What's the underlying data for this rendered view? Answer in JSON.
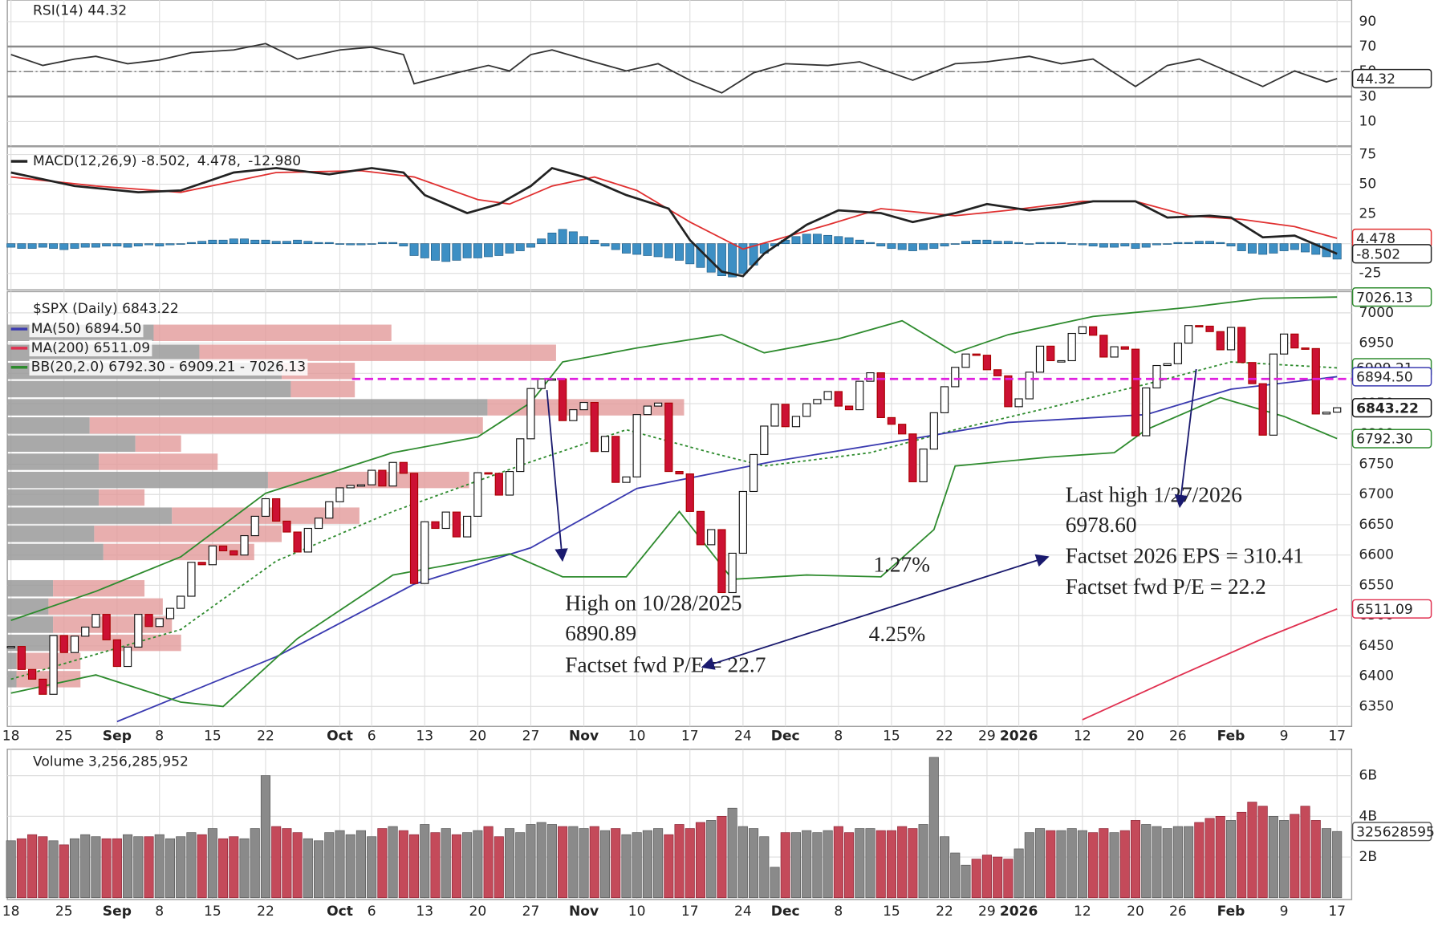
{
  "chart_data": [
    {
      "type": "line",
      "header": "RSI(14) 44.32",
      "color": "#333333",
      "x": [
        0,
        3,
        6,
        8,
        11,
        14,
        17,
        21,
        24,
        27,
        31,
        34,
        37,
        38,
        42,
        45,
        47,
        49,
        51,
        54,
        58,
        61,
        64,
        67,
        70,
        73,
        77,
        80,
        85,
        89,
        92,
        96,
        99,
        102,
        106,
        109,
        112,
        114,
        118,
        121,
        124,
        125
      ],
      "values": [
        63.6,
        54.9,
        60,
        62.2,
        56.3,
        59.3,
        65.1,
        67.3,
        72.4,
        60,
        67.3,
        69.5,
        63.6,
        40.2,
        49,
        54.9,
        50.5,
        63.6,
        67.3,
        60,
        50.5,
        56.3,
        43.1,
        32.9,
        49,
        56.3,
        54.9,
        57.8,
        43.1,
        56.3,
        57.8,
        62.2,
        56.3,
        60,
        38,
        54.9,
        60,
        52.7,
        38,
        50.5,
        41.7,
        44.32
      ],
      "ylim": [
        0,
        100
      ],
      "yticks": [
        90,
        70,
        50,
        30,
        10
      ],
      "levels": [
        70,
        30
      ],
      "midline": 50
    },
    {
      "type": "macd",
      "header": [
        "MACD(12,26,9) -8.502,",
        "4.478,",
        "-12.980"
      ],
      "series": [
        {
          "color": "#222222",
          "x": [
            0,
            6,
            12,
            16,
            21,
            25,
            30,
            34,
            37,
            39,
            43,
            46,
            49,
            51,
            54,
            58,
            62,
            64,
            67,
            69,
            71,
            75,
            78,
            82,
            85,
            89,
            92,
            96,
            99,
            102,
            106,
            109,
            113,
            115,
            118,
            121,
            125
          ],
          "values": [
            59.8,
            48.5,
            43.2,
            44.7,
            59.8,
            63.6,
            58.3,
            63.6,
            59.8,
            40.9,
            25.7,
            33.3,
            48.5,
            63.6,
            56.1,
            40.9,
            29.5,
            3,
            -23.5,
            -27.3,
            -8.4,
            15.9,
            28,
            25.7,
            18.2,
            25.7,
            33.3,
            28,
            31,
            35.6,
            35.6,
            22,
            23.5,
            22,
            5.3,
            6.8,
            -8.502
          ]
        },
        {
          "color": "#e03030",
          "x": [
            0,
            8,
            16,
            25,
            33,
            38,
            44,
            47,
            51,
            55,
            59,
            64,
            69,
            72,
            77,
            82,
            89,
            94,
            101,
            106,
            111,
            116,
            121,
            125
          ],
          "values": [
            56.1,
            48.5,
            43.2,
            59.8,
            61.4,
            56.1,
            37.1,
            33.3,
            48.5,
            56.1,
            44.7,
            18.2,
            -4.6,
            3,
            15.9,
            29.5,
            23.5,
            28,
            35.6,
            35.6,
            23.5,
            20.4,
            14.4,
            4.478
          ]
        },
        {
          "color": "#3d8fc4",
          "values": [
            -3,
            -4,
            -4,
            -3,
            -4,
            -5,
            -4,
            -3,
            -3,
            -2,
            -2,
            -3,
            -2,
            -1,
            -2,
            -1,
            0,
            1,
            2,
            3,
            3,
            4,
            4,
            3,
            3,
            2,
            2,
            3,
            2,
            1,
            1,
            0,
            -1,
            -1,
            0,
            1,
            1,
            -2,
            -10,
            -12,
            -14,
            -15,
            -14,
            -12,
            -12,
            -11,
            -10,
            -8,
            -6,
            -3,
            4,
            9,
            12,
            10,
            6,
            3,
            -2,
            -5,
            -8,
            -9,
            -10,
            -11,
            -12,
            -14,
            -17,
            -20,
            -24,
            -27,
            -28,
            -25,
            -18,
            -8,
            -2,
            3,
            6,
            8,
            8,
            7,
            6,
            5,
            3,
            1,
            -2,
            -4,
            -5,
            -6,
            -5,
            -4,
            -2,
            0,
            2,
            3,
            3,
            2,
            2,
            1,
            0,
            1,
            1,
            1,
            0,
            -1,
            -2,
            -3,
            -3,
            -2,
            -4,
            -3,
            -1,
            0,
            1,
            1,
            2,
            2,
            1,
            -2,
            -6,
            -8,
            -9,
            -8,
            -6,
            -5,
            -7,
            -9,
            -11,
            -12.98
          ]
        }
      ],
      "ylim": [
        -35,
        80
      ],
      "yticks": [
        75,
        50,
        25,
        0,
        -25
      ]
    },
    {
      "type": "candlestick",
      "header": "$SPX (Daily) 6843.22",
      "categories": [
        "18",
        null,
        null,
        null,
        null,
        "25",
        null,
        null,
        null,
        null,
        "Sep",
        null,
        null,
        null,
        "8",
        null,
        null,
        null,
        null,
        "15",
        null,
        null,
        null,
        null,
        "22",
        null,
        null,
        null,
        null,
        null,
        null,
        "Oct",
        null,
        null,
        "6",
        null,
        null,
        null,
        null,
        "13",
        null,
        null,
        null,
        null,
        "20",
        null,
        null,
        null,
        null,
        "27",
        null,
        null,
        null,
        null,
        "Nov",
        null,
        null,
        null,
        null,
        "10",
        null,
        null,
        null,
        null,
        "17",
        null,
        null,
        null,
        null,
        "24",
        null,
        null,
        null,
        "Dec",
        null,
        null,
        null,
        null,
        "8",
        null,
        null,
        null,
        null,
        "15",
        null,
        null,
        null,
        null,
        "22",
        null,
        null,
        null,
        "29",
        null,
        null,
        "2026",
        null,
        null,
        null,
        null,
        null,
        "12",
        null,
        null,
        null,
        null,
        "20",
        null,
        null,
        null,
        "26",
        null,
        null,
        null,
        null,
        "Feb",
        null,
        null,
        null,
        null,
        "9",
        null,
        null,
        null,
        null,
        "17"
      ],
      "close": [
        6449,
        6411,
        6395,
        6370,
        6467,
        6439,
        6466,
        6481,
        6502,
        6460,
        6416,
        6448,
        6502,
        6482,
        6495,
        6512,
        6532,
        6588,
        6584,
        6615,
        6607,
        6600,
        6632,
        6664,
        6693,
        6656,
        6638,
        6605,
        6644,
        6661,
        6688,
        6711,
        6715,
        6716,
        6740,
        6714,
        6753,
        6735,
        6553,
        6655,
        6644,
        6671,
        6630,
        6664,
        6736,
        6735,
        6699,
        6738,
        6792,
        6875,
        6891,
        6891,
        6822,
        6840,
        6852,
        6771,
        6796,
        6720,
        6729,
        6832,
        6846,
        6851,
        6738,
        6734,
        6672,
        6617,
        6642,
        6538,
        6603,
        6705,
        6766,
        6813,
        6849,
        6812,
        6829,
        6850,
        6857,
        6870,
        6846,
        6840,
        6887,
        6901,
        6827,
        6816,
        6800,
        6721,
        6775,
        6835,
        6878,
        6910,
        6932,
        6930,
        6906,
        6896,
        6845,
        6858,
        6902,
        6945,
        6921,
        6921,
        6966,
        6977,
        6963,
        6927,
        6944,
        6940,
        6797,
        6876,
        6913,
        6916,
        6950,
        6979,
        6978,
        6969,
        6939,
        6976,
        6918,
        6883,
        6798,
        6932,
        6965,
        6942,
        6941,
        6833,
        6836,
        6843.22
      ],
      "legend": [
        {
          "label": "MA(50) 6894.50",
          "color": "#3a3ab0"
        },
        {
          "label": "MA(200) 6511.09",
          "color": "#e03050"
        },
        {
          "label": "BB(20,2.0) 6792.30 - 6909.21 - 7026.13",
          "color": "#2e8b2e"
        }
      ],
      "overlays": [
        {
          "color": "#2e8b2e",
          "dash": true,
          "x": [
            0,
            16,
            25,
            36,
            49,
            58,
            66,
            71,
            81,
            89,
            98,
            107,
            115,
            125
          ],
          "values": [
            6395,
            6477,
            6590,
            6672,
            6754,
            6807,
            6769,
            6747,
            6769,
            6807,
            6844,
            6882,
            6919,
            6909.21
          ]
        },
        {
          "color": "#3a3ab0",
          "x": [
            10,
            25,
            38,
            49,
            59,
            72,
            85,
            94,
            107,
            115,
            125
          ],
          "values": [
            6325,
            6432,
            6552,
            6612,
            6710,
            6755,
            6792,
            6819,
            6832,
            6874,
            6894.5
          ],
          "value_labels": [
            null,
            null,
            null,
            null,
            null,
            null,
            null,
            null,
            null,
            null,
            "6894.50"
          ]
        },
        {
          "color": "#e03050",
          "x": [
            101,
            110,
            118,
            125
          ],
          "values": [
            6328,
            6400,
            6462,
            6511.09
          ]
        },
        {
          "color": "#2e8b2e",
          "x": [
            0,
            8,
            16,
            24,
            36,
            44,
            49,
            52,
            59,
            67,
            71,
            78,
            84,
            89,
            94,
            102,
            111,
            118,
            125
          ],
          "values": [
            6492,
            6540,
            6597,
            6702,
            6769,
            6795,
            6852,
            6919,
            6942,
            6964,
            6934,
            6957,
            6987,
            6934,
            6964,
            6994,
            7009,
            7024,
            7026.13
          ]
        },
        {
          "color": "#2e8b2e",
          "x": [
            0,
            8,
            16,
            20,
            27,
            36,
            47,
            52,
            58,
            63,
            68,
            75,
            82,
            87,
            89,
            98,
            104,
            107,
            114,
            120,
            125
          ],
          "values": [
            6372,
            6402,
            6357,
            6350,
            6462,
            6567,
            6602,
            6564,
            6564,
            6672,
            6560,
            6567,
            6564,
            6642,
            6747,
            6762,
            6769,
            6807,
            6860,
            6829,
            6792.3
          ],
          "value_labels": [
            null,
            null,
            null,
            null,
            null,
            null,
            null,
            null,
            null,
            null,
            null,
            null,
            null,
            null,
            null,
            null,
            null,
            null,
            null,
            null,
            "6792.30"
          ]
        }
      ],
      "volume_by_price": {
        "price": [
          6967,
          6934,
          6904,
          6874,
          6844,
          6814,
          6784,
          6754,
          6724,
          6695,
          6665,
          6635,
          6605,
          6545,
          6515,
          6485,
          6455,
          6425,
          6395
        ],
        "down": [
          160,
          210,
          300,
          310,
          525,
          90,
          140,
          100,
          285,
          100,
          180,
          95,
          105,
          50,
          45,
          50,
          55,
          10,
          10
        ],
        "up": [
          260,
          390,
          80,
          70,
          215,
          430,
          50,
          130,
          220,
          50,
          205,
          205,
          165,
          100,
          125,
          130,
          135,
          70,
          70
        ]
      },
      "reference_line": 6890.89,
      "annotations": [
        {
          "text": "High on 10/28/2025",
          "color": "#1a1a6e"
        },
        {
          "text": "6890.89",
          "color": "#1a1a6e"
        },
        {
          "text": "Factset fwd P/E = 22.7",
          "color": "#2a9a2a"
        },
        {
          "text": "Last high 1/27/2026",
          "color": "#1a1a6e"
        },
        {
          "text": "6978.60",
          "color": "#1a1a6e"
        },
        {
          "text": "Factset 2026 EPS = 310.41",
          "color": "#2a9a2a"
        },
        {
          "text": "Factset fwd P/E = 22.2",
          "color": "#2a9a2a"
        },
        {
          "text": "1.27%",
          "color": "#1a1a6e"
        },
        {
          "text": "4.25%",
          "color": "#2a9a2a"
        }
      ],
      "ylim": [
        6320,
        7035
      ],
      "yticks": [
        7000,
        6950,
        6900,
        6850,
        6800,
        6750,
        6700,
        6650,
        6600,
        6550,
        6500,
        6450,
        6400,
        6350
      ]
    },
    {
      "type": "volume",
      "header": "Volume 3,256,285,952",
      "up_color": "#8a8a8a",
      "down_color": "#c44a5a",
      "values": [
        2800000000.0,
        2900000000.0,
        3100000000.0,
        3000000000.0,
        2800000000.0,
        2600000000.0,
        2900000000.0,
        3100000000.0,
        3000000000.0,
        2900000000.0,
        2900000000.0,
        3100000000.0,
        3000000000.0,
        3000000000.0,
        3100000000.0,
        2900000000.0,
        3000000000.0,
        3200000000.0,
        3100000000.0,
        3400000000.0,
        2900000000.0,
        3000000000.0,
        2900000000.0,
        3400000000.0,
        6000000000.0,
        3500000000.0,
        3400000000.0,
        3200000000.0,
        2900000000.0,
        2800000000.0,
        3200000000.0,
        3300000000.0,
        3100000000.0,
        3300000000.0,
        3000000000.0,
        3400000000.0,
        3500000000.0,
        3300000000.0,
        3100000000.0,
        3600000000.0,
        3200000000.0,
        3400000000.0,
        3100000000.0,
        3200000000.0,
        3300000000.0,
        3500000000.0,
        3000000000.0,
        3400000000.0,
        3200000000.0,
        3600000000.0,
        3700000000.0,
        3600000000.0,
        3500000000.0,
        3500000000.0,
        3400000000.0,
        3500000000.0,
        3300000000.0,
        3400000000.0,
        3100000000.0,
        3200000000.0,
        3300000000.0,
        3400000000.0,
        3100000000.0,
        3600000000.0,
        3400000000.0,
        3700000000.0,
        3800000000.0,
        4000000000.0,
        4400000000.0,
        3500000000.0,
        3400000000.0,
        3000000000.0,
        1500000000.0,
        3200000000.0,
        3200000000.0,
        3300000000.0,
        3200000000.0,
        3300000000.0,
        3500000000.0,
        3200000000.0,
        3400000000.0,
        3400000000.0,
        3300000000.0,
        3300000000.0,
        3500000000.0,
        3400000000.0,
        3600000000.0,
        6900000000.0,
        3000000000.0,
        2200000000.0,
        1600000000.0,
        1900000000.0,
        2100000000.0,
        2000000000.0,
        1900000000.0,
        2400000000.0,
        3200000000.0,
        3400000000.0,
        3300000000.0,
        3300000000.0,
        3400000000.0,
        3300000000.0,
        3200000000.0,
        3400000000.0,
        3200000000.0,
        3300000000.0,
        3800000000.0,
        3600000000.0,
        3500000000.0,
        3400000000.0,
        3500000000.0,
        3500000000.0,
        3700000000.0,
        3900000000.0,
        4000000000.0,
        3800000000.0,
        4200000000.0,
        4700000000.0,
        4500000000.0,
        4000000000.0,
        3800000000.0,
        4100000000.0,
        4500000000.0,
        3800000000.0,
        3400000000.0,
        3256285952
      ],
      "ylim": [
        0,
        7300000000.0
      ],
      "yticks": [
        {
          "value": 2000000000,
          "label": "2B"
        },
        {
          "value": 4000000000,
          "label": "4B"
        },
        {
          "value": 6000000000,
          "label": "6B"
        }
      ]
    }
  ]
}
